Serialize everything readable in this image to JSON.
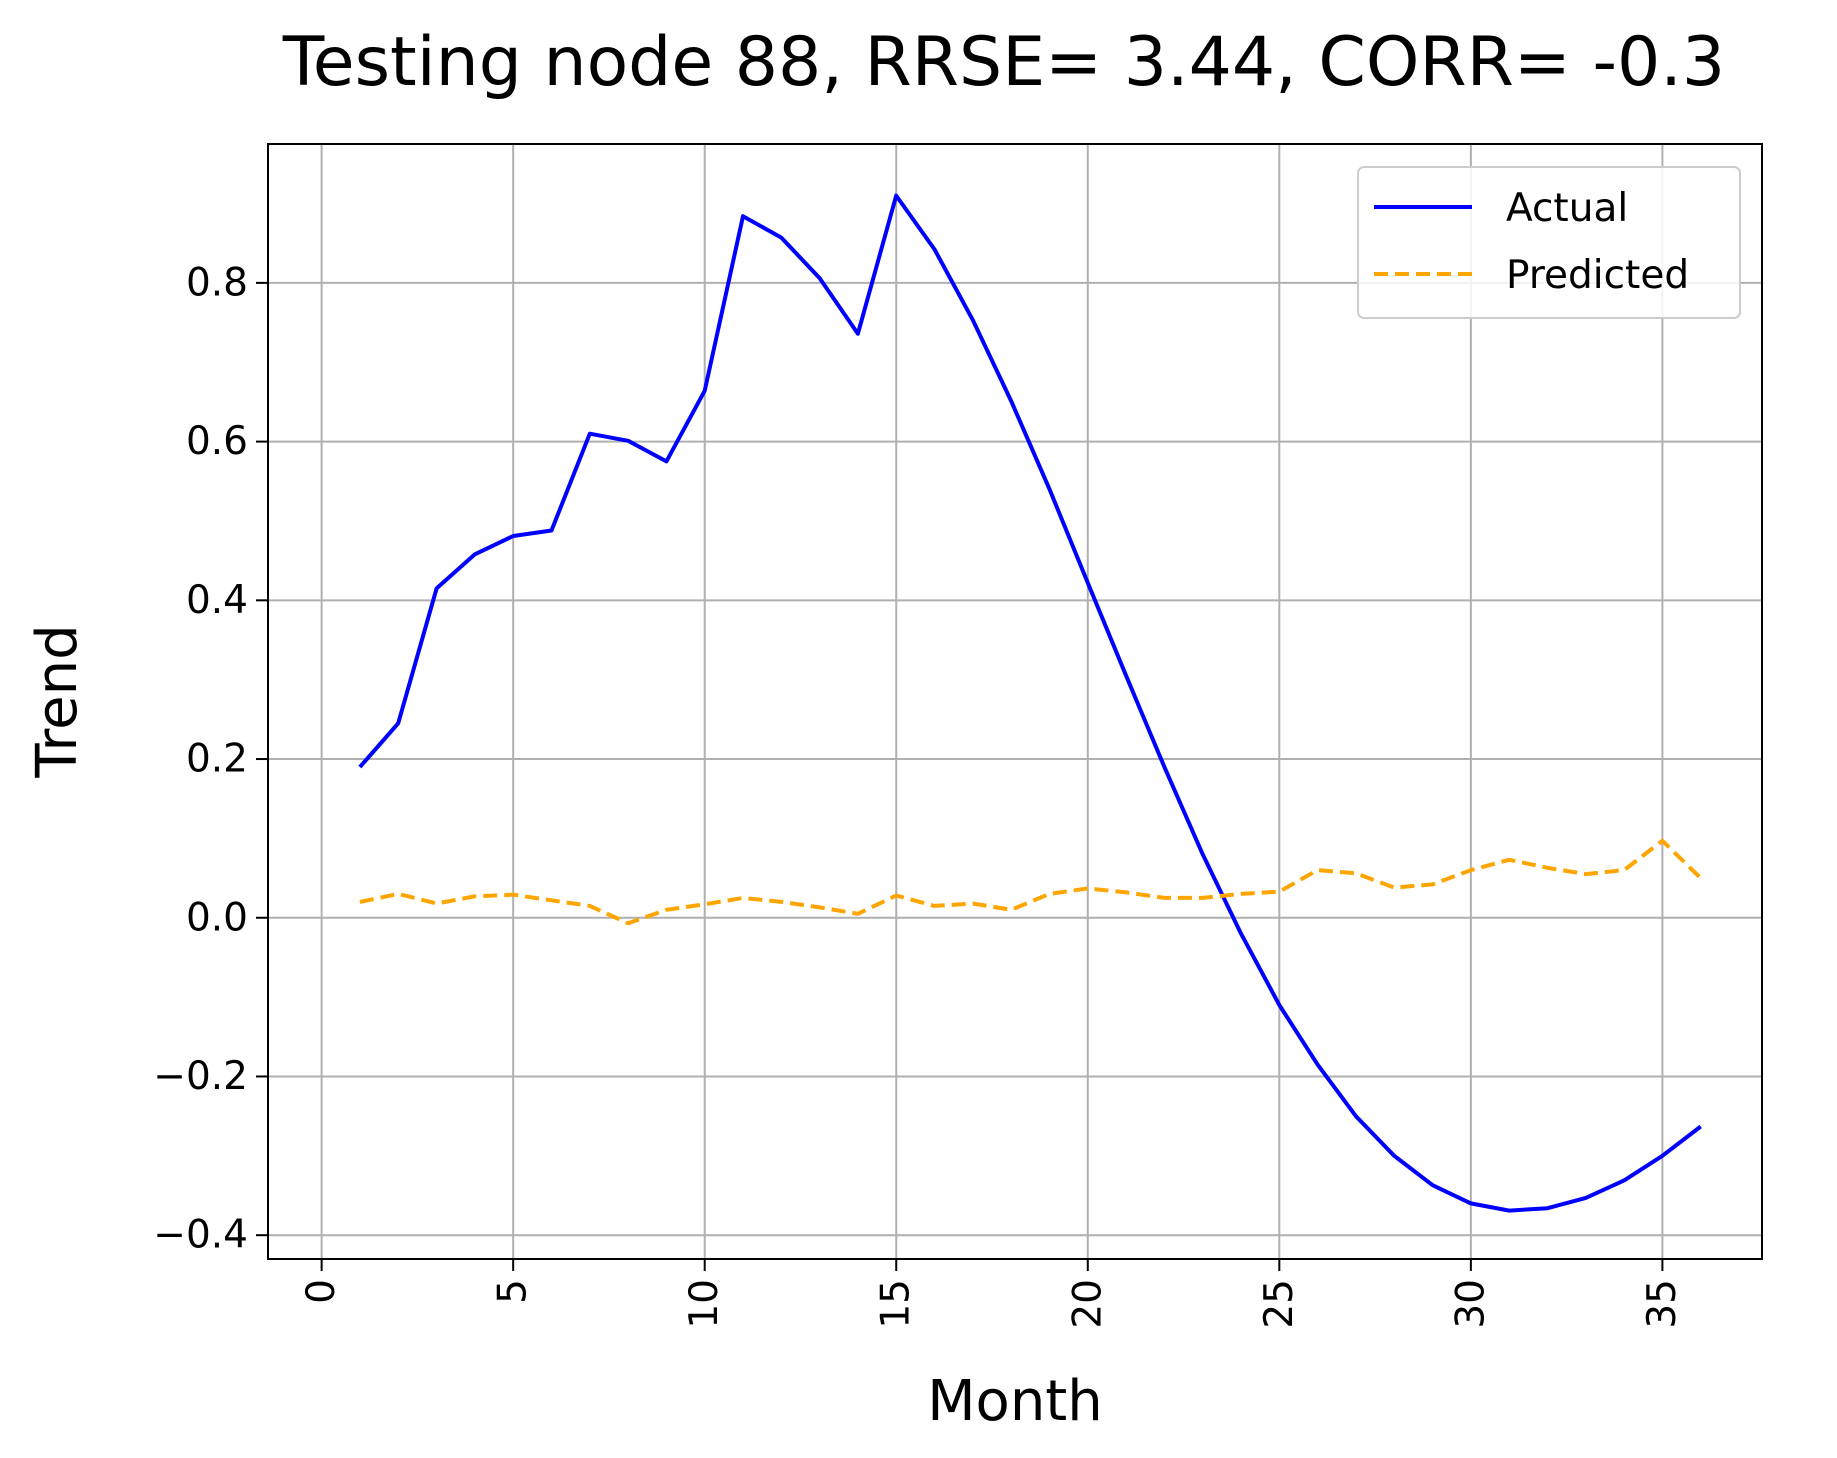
{
  "chart_data": {
    "type": "line",
    "title": "Testing node 88, RRSE= 3.44, CORR= -0.3",
    "xlabel": "Month",
    "ylabel": "Trend",
    "xlim": [
      -1.4,
      37.6
    ],
    "ylim": [
      -0.43,
      0.975
    ],
    "xticks": [
      0,
      5,
      10,
      15,
      20,
      25,
      30,
      35
    ],
    "yticks": [
      -0.4,
      -0.2,
      0.0,
      0.2,
      0.4,
      0.6,
      0.8
    ],
    "ytick_labels": [
      "−0.4",
      "−0.2",
      "0.0",
      "0.2",
      "0.4",
      "0.6",
      "0.8"
    ],
    "xtick_rotation": -90,
    "grid": true,
    "legend_position": "top-right",
    "x": [
      1,
      2,
      3,
      4,
      5,
      6,
      7,
      8,
      9,
      10,
      11,
      12,
      13,
      14,
      15,
      16,
      17,
      18,
      19,
      20,
      21,
      22,
      23,
      24,
      25,
      26,
      27,
      28,
      29,
      30,
      31,
      32,
      33,
      34,
      35,
      36
    ],
    "series": [
      {
        "name": "Actual",
        "color": "#0000ff",
        "style": "solid",
        "values": [
          0.19,
          0.245,
          0.415,
          0.458,
          0.481,
          0.488,
          0.61,
          0.601,
          0.575,
          0.664,
          0.884,
          0.857,
          0.806,
          0.736,
          0.91,
          0.842,
          0.753,
          0.651,
          0.54,
          0.422,
          0.305,
          0.19,
          0.08,
          -0.02,
          -0.11,
          -0.185,
          -0.25,
          -0.3,
          -0.337,
          -0.36,
          -0.369,
          -0.366,
          -0.353,
          -0.331,
          -0.3,
          -0.263
        ]
      },
      {
        "name": "Predicted",
        "color": "#ffa500",
        "style": "dashed",
        "values": [
          0.02,
          0.03,
          0.018,
          0.027,
          0.029,
          0.022,
          0.015,
          -0.007,
          0.01,
          0.017,
          0.025,
          0.02,
          0.013,
          0.005,
          0.028,
          0.015,
          0.018,
          0.01,
          0.03,
          0.037,
          0.032,
          0.025,
          0.025,
          0.03,
          0.033,
          0.06,
          0.056,
          0.038,
          0.042,
          0.06,
          0.073,
          0.063,
          0.055,
          0.06,
          0.097,
          0.05
        ]
      }
    ]
  }
}
